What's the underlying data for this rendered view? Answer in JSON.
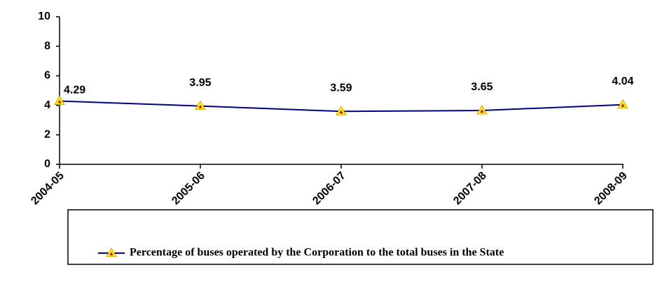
{
  "chart_data": {
    "type": "line",
    "categories": [
      "2004-05",
      "2005-06",
      "2006-07",
      "2007-08",
      "2008-09"
    ],
    "series": [
      {
        "name": "Percentage of buses operated by the Corporation to the total buses in the State",
        "color": "#000080",
        "values": [
          4.29,
          3.95,
          3.59,
          3.65,
          4.04
        ]
      }
    ],
    "ylim": [
      0,
      10
    ],
    "yticks": [
      0,
      2,
      4,
      6,
      8,
      10
    ],
    "grid": false,
    "legend": "bottom",
    "marker_color": "#ffff00"
  }
}
